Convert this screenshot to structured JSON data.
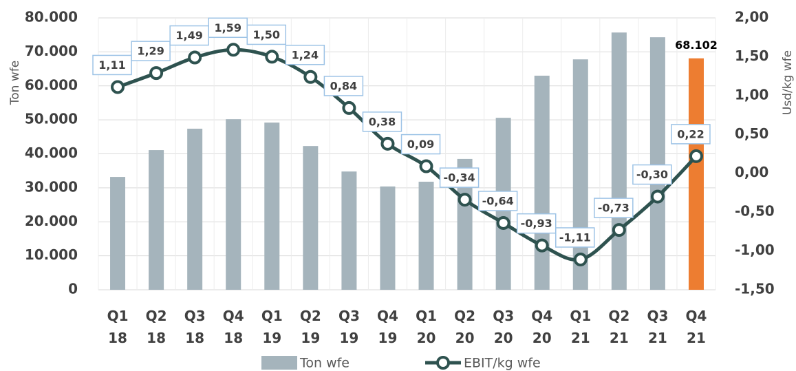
{
  "chart_data": {
    "type": "bar_line",
    "categories": [
      "Q1 18",
      "Q2 18",
      "Q3 18",
      "Q4 18",
      "Q1 19",
      "Q2 19",
      "Q3 19",
      "Q4 19",
      "Q1 20",
      "Q2 20",
      "Q3 20",
      "Q4 20",
      "Q1 21",
      "Q2 21",
      "Q3 21",
      "Q4 21"
    ],
    "series": [
      {
        "name": "Ton wfe",
        "type": "bar",
        "color": "#a5b4bc",
        "colors": [
          "#a5b4bc",
          "#a5b4bc",
          "#a5b4bc",
          "#a5b4bc",
          "#a5b4bc",
          "#a5b4bc",
          "#a5b4bc",
          "#a5b4bc",
          "#a5b4bc",
          "#a5b4bc",
          "#a5b4bc",
          "#a5b4bc",
          "#a5b4bc",
          "#a5b4bc",
          "#a5b4bc",
          "#ed7d31"
        ],
        "values": [
          33200,
          41100,
          47400,
          50200,
          49200,
          42300,
          34800,
          30400,
          31800,
          38500,
          50600,
          63000,
          67800,
          75700,
          74300,
          68102
        ],
        "value_labels": [
          null,
          null,
          null,
          null,
          null,
          null,
          null,
          null,
          null,
          null,
          null,
          null,
          null,
          null,
          null,
          "68.102"
        ]
      },
      {
        "name": "EBIT/kg wfe",
        "type": "line",
        "axis": "y2",
        "color": "#2e524f",
        "values": [
          1.11,
          1.29,
          1.49,
          1.59,
          1.5,
          1.24,
          0.84,
          0.38,
          0.09,
          -0.34,
          -0.64,
          -0.93,
          -1.11,
          -0.73,
          -0.3,
          0.22
        ],
        "value_labels": [
          "1,11",
          "1,29",
          "1,49",
          "1,59",
          "1,50",
          "1,24",
          "0,84",
          "0,38",
          "0,09",
          "-0,34",
          "-0,64",
          "-0,93",
          "-1,11",
          "-0,73",
          "-0,30",
          "0,22"
        ]
      }
    ],
    "ylabel": "Ton wfe",
    "y2label": "Usd/kg wfe",
    "ylim": [
      0,
      80000
    ],
    "yticks": [
      0,
      {
        "value": 10000,
        "label": "10.000"
      },
      {
        "value": 20000,
        "label": "20.000"
      },
      {
        "value": 30000,
        "label": "30.000"
      },
      {
        "value": 40000,
        "label": "40.000"
      },
      {
        "value": 50000,
        "label": "50.000"
      },
      {
        "value": 60000,
        "label": "60.000"
      },
      {
        "value": 70000,
        "label": "70.000"
      },
      {
        "value": 80000,
        "label": "80.000"
      }
    ],
    "y2lim": [
      -1.5,
      2.0
    ],
    "y2ticks": [
      {
        "value": -1.5,
        "label": "-1,50"
      },
      {
        "value": -1,
        "label": "-1,00"
      },
      {
        "value": -0.5,
        "label": "-0,50"
      },
      {
        "value": 0,
        "label": "0,00"
      },
      {
        "value": 0.5,
        "label": "0,50"
      },
      {
        "value": 1,
        "label": "1,00"
      },
      {
        "value": 1.5,
        "label": "1,50"
      },
      {
        "value": 2,
        "label": "2,00"
      }
    ],
    "grid": true,
    "legend": "bottom"
  }
}
